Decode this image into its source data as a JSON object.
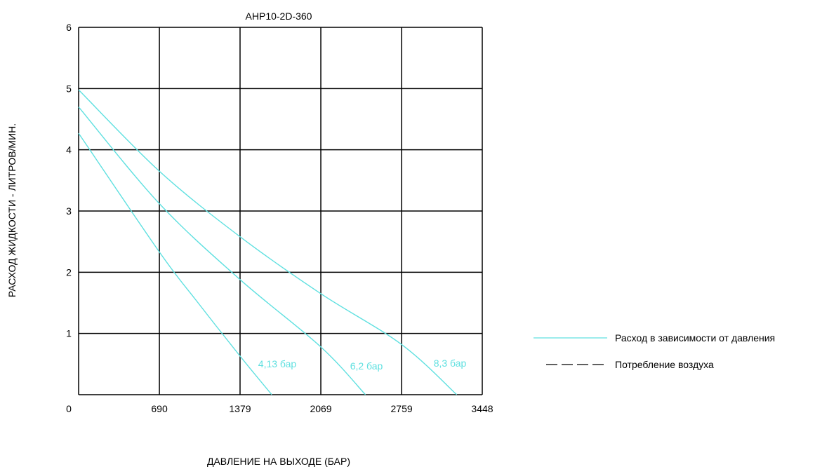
{
  "chart_data": {
    "type": "line",
    "title": "AHP10-2D-360",
    "xlabel": "ДАВЛЕНИЕ НА ВЫХОДЕ (БАР)",
    "ylabel": "РАСХОД ЖИДКОСТИ - ЛИТРОВ/МИН.",
    "x_ticks": [
      "0",
      "690",
      "1379",
      "2069",
      "2759",
      "3448"
    ],
    "y_ticks": [
      "1",
      "2",
      "3",
      "4",
      "5",
      "6"
    ],
    "xlim": [
      0,
      3448
    ],
    "ylim": [
      0,
      6
    ],
    "grid": true,
    "series": [
      {
        "name": "4,13 бар",
        "x": [
          0,
          690,
          1000,
          1379,
          1650
        ],
        "y": [
          4.27,
          2.33,
          1.55,
          0.63,
          0
        ]
      },
      {
        "name": "6,2 бар",
        "x": [
          0,
          690,
          1379,
          2069,
          2450
        ],
        "y": [
          4.7,
          3.12,
          1.88,
          0.78,
          0
        ]
      },
      {
        "name": "8,3 бар",
        "x": [
          0,
          690,
          1379,
          2069,
          2759,
          3230
        ],
        "y": [
          4.98,
          3.65,
          2.58,
          1.65,
          0.82,
          0
        ]
      }
    ],
    "legend": [
      {
        "label": "Расход в зависимости от давления",
        "style": "solid"
      },
      {
        "label": "Потребление воздуха",
        "style": "dashed"
      }
    ],
    "legend_position": "right",
    "colors": {
      "curve": "#5fe0e0",
      "grid": "#000000"
    }
  }
}
